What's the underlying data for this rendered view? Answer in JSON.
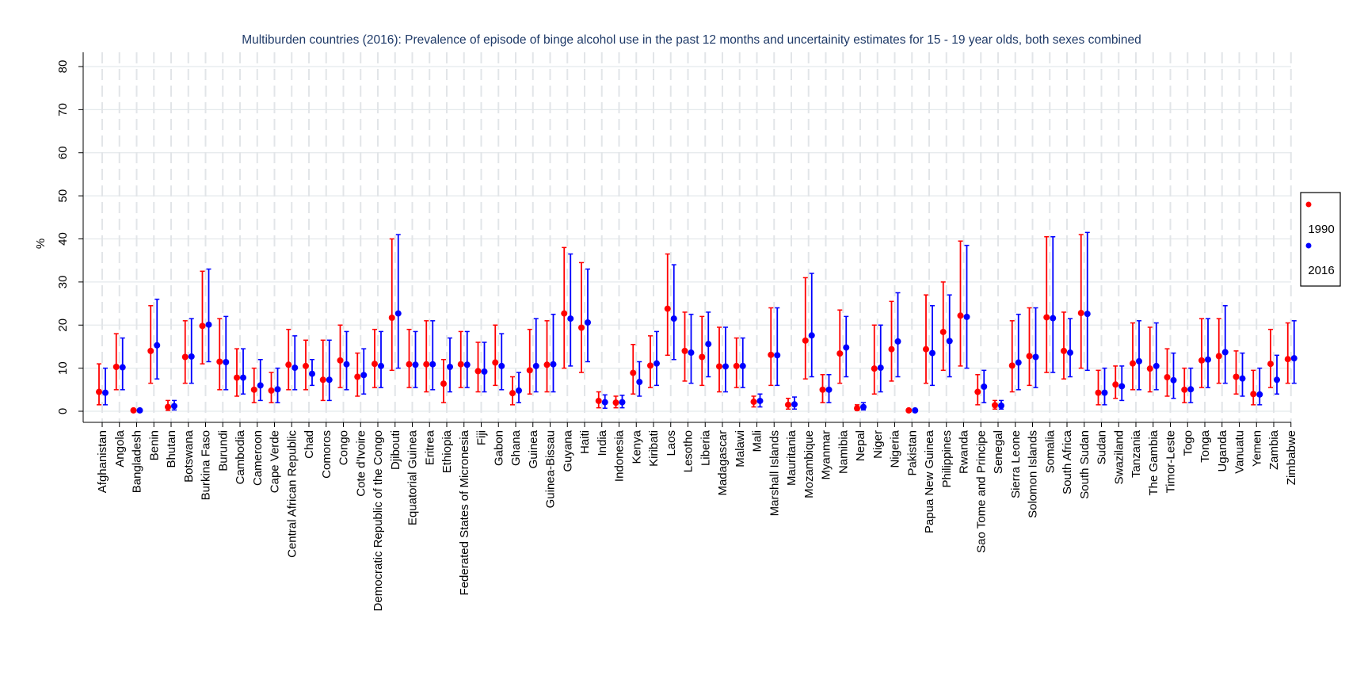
{
  "chart_data": {
    "type": "errorbar",
    "title": "Multiburden countries (2016): Prevalence of episode of binge alcohol use in the past 12 months and uncertainity estimates for 15 - 19 year olds,  both sexes combined",
    "xlabel": "",
    "ylabel": "%",
    "ylim": [
      0,
      80
    ],
    "yticks": [
      0,
      10,
      20,
      30,
      40,
      50,
      60,
      70,
      80
    ],
    "grid": true,
    "legend_position": "right",
    "categories": [
      "Afghanistan",
      "Angola",
      "Bangladesh",
      "Benin",
      "Bhutan",
      "Botswana",
      "Burkina Faso",
      "Burundi",
      "Cambodia",
      "Cameroon",
      "Cape Verde",
      "Central African Republic",
      "Chad",
      "Comoros",
      "Congo",
      "Cote d'Ivoire",
      "Democratic Republic of the Congo",
      "Djibouti",
      "Equatorial Guinea",
      "Eritrea",
      "Ethiopia",
      "Federated States of Micronesia",
      "Fiji",
      "Gabon",
      "Ghana",
      "Guinea",
      "Guinea-Bissau",
      "Guyana",
      "Haiti",
      "India",
      "Indonesia",
      "Kenya",
      "Kiribati",
      "Laos",
      "Lesotho",
      "Liberia",
      "Madagascar",
      "Malawi",
      "Mali",
      "Marshall Islands",
      "Mauritania",
      "Mozambique",
      "Myanmar",
      "Namibia",
      "Nepal",
      "Niger",
      "Nigeria",
      "Pakistan",
      "Papua New Guinea",
      "Philippines",
      "Rwanda",
      "Sao Tome and Principe",
      "Senegal",
      "Sierra Leone",
      "Solomon Islands",
      "Somalia",
      "South Africa",
      "South Sudan",
      "Sudan",
      "Swaziland",
      "Tanzania",
      "The Gambia",
      "Timor-Leste",
      "Togo",
      "Tonga",
      "Uganda",
      "Vanuatu",
      "Yemen",
      "Zambia",
      "Zimbabwe"
    ],
    "series": [
      {
        "name": "1990",
        "color": "#ff0000",
        "values": [
          4.5,
          10.3,
          0.2,
          14.0,
          1.0,
          12.6,
          19.8,
          11.5,
          7.8,
          5.0,
          4.8,
          10.8,
          10.5,
          7.3,
          11.8,
          8.0,
          11.0,
          21.7,
          10.9,
          10.9,
          6.4,
          10.9,
          9.3,
          11.3,
          4.2,
          9.5,
          10.8,
          22.7,
          19.4,
          2.4,
          2.0,
          8.9,
          10.6,
          23.8,
          14.0,
          12.6,
          10.4,
          10.5,
          2.2,
          13.1,
          1.5,
          16.4,
          5.0,
          13.4,
          0.7,
          9.9,
          14.4,
          0.2,
          14.4,
          18.4,
          22.2,
          4.5,
          1.4,
          10.6,
          12.8,
          21.8,
          14.0,
          22.8,
          4.3,
          6.2,
          11.1,
          9.9,
          7.9,
          5.0,
          11.8,
          12.8,
          8.0,
          4.0,
          11.0,
          12.1
        ],
        "lower": [
          1.5,
          5.0,
          0.05,
          6.5,
          0.2,
          6.5,
          11.0,
          5.0,
          3.5,
          2.0,
          2.0,
          5.0,
          5.0,
          2.5,
          5.5,
          3.5,
          5.5,
          9.5,
          5.5,
          4.5,
          2.0,
          5.5,
          4.5,
          6.0,
          1.5,
          4.0,
          4.5,
          10.0,
          9.0,
          0.8,
          0.8,
          4.0,
          5.5,
          13.0,
          7.0,
          6.0,
          4.5,
          5.5,
          1.0,
          6.0,
          0.5,
          7.5,
          2.0,
          6.5,
          0.2,
          4.0,
          7.0,
          0.05,
          6.5,
          9.5,
          10.5,
          1.5,
          0.5,
          4.5,
          6.0,
          9.0,
          7.5,
          10.0,
          1.5,
          3.0,
          5.0,
          4.5,
          3.5,
          2.0,
          5.5,
          6.5,
          4.0,
          1.5,
          5.5,
          6.5
        ],
        "upper": [
          11.0,
          18.0,
          0.4,
          24.5,
          2.5,
          21.0,
          32.5,
          21.5,
          14.5,
          10.0,
          9.0,
          19.0,
          16.5,
          16.5,
          20.0,
          13.5,
          19.0,
          40.0,
          19.0,
          21.0,
          12.0,
          18.5,
          16.0,
          20.0,
          8.0,
          19.0,
          21.0,
          38.0,
          34.5,
          4.5,
          3.5,
          15.5,
          17.5,
          36.5,
          23.0,
          22.0,
          19.5,
          17.0,
          3.5,
          24.0,
          3.0,
          31.0,
          8.5,
          23.5,
          1.5,
          20.0,
          25.5,
          0.4,
          27.0,
          30.0,
          39.5,
          8.5,
          2.5,
          21.0,
          24.0,
          40.5,
          23.0,
          41.0,
          9.5,
          10.5,
          20.5,
          19.5,
          14.5,
          10.0,
          21.5,
          21.5,
          14.0,
          9.5,
          19.0,
          20.5
        ]
      },
      {
        "name": "2016",
        "color": "#0000ff",
        "values": [
          4.3,
          10.2,
          0.2,
          15.3,
          1.2,
          12.7,
          20.1,
          11.4,
          7.8,
          6.0,
          5.1,
          10.1,
          8.7,
          7.3,
          10.9,
          8.4,
          10.5,
          22.7,
          10.8,
          10.9,
          10.3,
          10.8,
          9.2,
          10.5,
          4.8,
          10.5,
          10.9,
          21.5,
          20.6,
          2.1,
          2.1,
          6.8,
          11.1,
          21.5,
          13.6,
          15.6,
          10.4,
          10.5,
          2.4,
          13.0,
          1.6,
          17.6,
          5.0,
          14.8,
          1.0,
          10.1,
          16.2,
          0.2,
          13.5,
          16.3,
          21.9,
          5.7,
          1.3,
          11.3,
          12.6,
          21.6,
          13.6,
          22.6,
          4.3,
          5.8,
          11.6,
          10.5,
          7.2,
          5.1,
          12.0,
          13.7,
          7.6,
          3.9,
          7.3,
          12.3
        ],
        "lower": [
          1.5,
          5.0,
          0.05,
          7.5,
          0.3,
          6.5,
          11.5,
          5.0,
          4.0,
          2.5,
          2.0,
          5.0,
          6.0,
          2.5,
          5.0,
          4.0,
          5.5,
          10.0,
          5.5,
          5.0,
          4.5,
          5.5,
          4.5,
          5.0,
          2.0,
          4.5,
          4.5,
          10.5,
          11.5,
          0.7,
          0.8,
          3.5,
          6.0,
          12.0,
          6.5,
          8.0,
          4.5,
          5.5,
          1.0,
          6.0,
          0.5,
          8.0,
          2.0,
          8.0,
          0.3,
          4.5,
          8.0,
          0.05,
          6.0,
          8.0,
          10.0,
          2.0,
          0.5,
          5.0,
          5.5,
          9.0,
          8.0,
          9.5,
          1.5,
          2.5,
          5.0,
          5.0,
          3.0,
          2.0,
          5.5,
          6.5,
          3.5,
          1.5,
          4.0,
          6.5
        ],
        "upper": [
          10.0,
          17.0,
          0.5,
          26.0,
          2.5,
          21.5,
          33.0,
          22.0,
          14.5,
          12.0,
          10.0,
          17.5,
          12.0,
          16.5,
          18.5,
          14.5,
          18.5,
          41.0,
          18.5,
          21.0,
          17.0,
          18.5,
          16.0,
          18.0,
          9.0,
          21.5,
          22.5,
          36.5,
          33.0,
          3.8,
          3.7,
          11.5,
          18.5,
          34.0,
          22.5,
          23.0,
          19.5,
          17.0,
          4.0,
          24.0,
          3.3,
          32.0,
          8.5,
          22.0,
          2.0,
          20.0,
          27.5,
          0.5,
          24.5,
          27.0,
          38.5,
          9.5,
          2.5,
          22.5,
          24.0,
          40.5,
          21.5,
          41.5,
          10.0,
          10.5,
          21.0,
          20.5,
          13.5,
          10.0,
          21.5,
          24.5,
          13.5,
          10.0,
          13.0,
          21.0
        ]
      }
    ]
  }
}
